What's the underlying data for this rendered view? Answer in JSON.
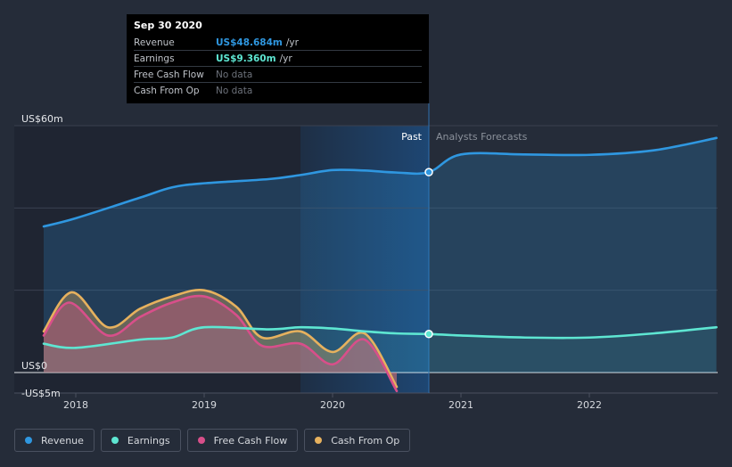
{
  "tooltip": {
    "date": "Sep 30 2020",
    "rows": [
      {
        "label": "Revenue",
        "value": "US$48.684m",
        "unit": "/yr",
        "color": "#2f97e0"
      },
      {
        "label": "Earnings",
        "value": "US$9.360m",
        "unit": "/yr",
        "color": "#5ee6d2"
      },
      {
        "label": "Free Cash Flow",
        "value": "No data",
        "unit": "",
        "color": ""
      },
      {
        "label": "Cash From Op",
        "value": "No data",
        "unit": "",
        "color": ""
      }
    ]
  },
  "legend": [
    {
      "label": "Revenue",
      "color": "#2f97e0"
    },
    {
      "label": "Earnings",
      "color": "#5ee6d2"
    },
    {
      "label": "Free Cash Flow",
      "color": "#d84f8a"
    },
    {
      "label": "Cash From Op",
      "color": "#e6b15e"
    }
  ],
  "chart_data": {
    "type": "line",
    "y_tick_labels": [
      "US$60m",
      "US$0",
      "-US$5m"
    ],
    "ylim": [
      -5,
      60
    ],
    "x_tick_labels": [
      "2018",
      "2019",
      "2020",
      "2021",
      "2022"
    ],
    "xlim": [
      2017.75,
      2022.99
    ],
    "past_label": "Past",
    "forecast_label": "Analysts Forecasts",
    "past_end": 2020.75,
    "highlight_start": 2019.75,
    "series": [
      {
        "name": "Revenue",
        "color": "#2f97e0",
        "points": [
          [
            2017.75,
            35.5
          ],
          [
            2018,
            37.5
          ],
          [
            2018.5,
            42.5
          ],
          [
            2018.75,
            45
          ],
          [
            2019,
            46
          ],
          [
            2019.5,
            47
          ],
          [
            2019.75,
            48
          ],
          [
            2020,
            49.2
          ],
          [
            2020.25,
            49.1
          ],
          [
            2020.5,
            48.6
          ],
          [
            2020.75,
            48.7
          ],
          [
            2021,
            53
          ],
          [
            2021.5,
            53
          ],
          [
            2022,
            52.9
          ],
          [
            2022.5,
            54
          ],
          [
            2022.99,
            57
          ]
        ]
      },
      {
        "name": "Earnings",
        "color": "#5ee6d2",
        "points": [
          [
            2017.75,
            7
          ],
          [
            2018,
            6
          ],
          [
            2018.5,
            8
          ],
          [
            2018.75,
            8.5
          ],
          [
            2019,
            11
          ],
          [
            2019.5,
            10.5
          ],
          [
            2019.75,
            11
          ],
          [
            2020,
            10.7
          ],
          [
            2020.25,
            10
          ],
          [
            2020.5,
            9.5
          ],
          [
            2020.75,
            9.36
          ],
          [
            2021,
            9
          ],
          [
            2021.5,
            8.5
          ],
          [
            2022,
            8.5
          ],
          [
            2022.5,
            9.5
          ],
          [
            2022.99,
            11
          ]
        ]
      },
      {
        "name": "Free Cash Flow",
        "color": "#d84f8a",
        "points": [
          [
            2017.75,
            9
          ],
          [
            2017.95,
            17
          ],
          [
            2018.25,
            9
          ],
          [
            2018.5,
            13.5
          ],
          [
            2018.75,
            17
          ],
          [
            2019,
            18.5
          ],
          [
            2019.25,
            14
          ],
          [
            2019.45,
            6.5
          ],
          [
            2019.75,
            7
          ],
          [
            2020,
            2
          ],
          [
            2020.25,
            8
          ],
          [
            2020.5,
            -4.5
          ]
        ]
      },
      {
        "name": "Cash From Op",
        "color": "#e6b15e",
        "points": [
          [
            2017.75,
            10
          ],
          [
            2017.97,
            19.5
          ],
          [
            2018.25,
            11
          ],
          [
            2018.5,
            15.5
          ],
          [
            2018.75,
            18.5
          ],
          [
            2019,
            20
          ],
          [
            2019.25,
            16
          ],
          [
            2019.45,
            8.5
          ],
          [
            2019.75,
            10
          ],
          [
            2020,
            5
          ],
          [
            2020.25,
            9.5
          ],
          [
            2020.5,
            -3.5
          ]
        ]
      }
    ]
  }
}
